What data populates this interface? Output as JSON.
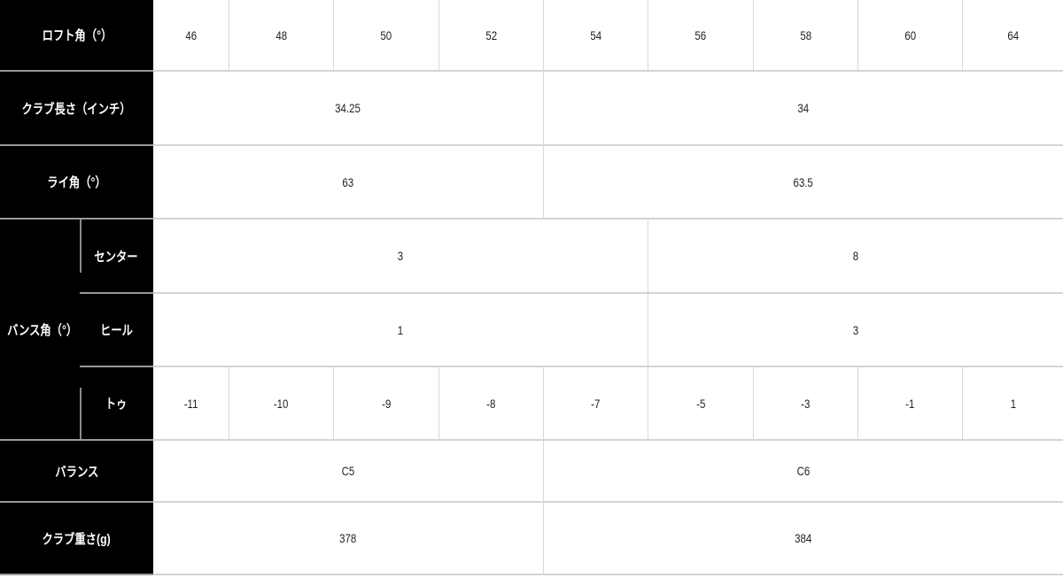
{
  "rows": {
    "loft": {
      "label": "ロフト角（°）",
      "values": [
        "46",
        "48",
        "50",
        "52",
        "54",
        "56",
        "58",
        "60",
        "64"
      ]
    },
    "length": {
      "label": "クラブ長さ（インチ）",
      "values": [
        "34.25",
        "34"
      ]
    },
    "lie": {
      "label": "ライ角（°）",
      "values": [
        "63",
        "63.5"
      ]
    },
    "bounce": {
      "label": "バンス角（°）",
      "center": {
        "label": "センター",
        "values": [
          "3",
          "8"
        ]
      },
      "heel": {
        "label": "ヒール",
        "values": [
          "1",
          "3"
        ]
      },
      "toe": {
        "label": "トゥ",
        "values": [
          "-11",
          "-10",
          "-9",
          "-8",
          "-7",
          "-5",
          "-3",
          "-1",
          "1"
        ]
      }
    },
    "balance": {
      "label": "バランス",
      "values": [
        "C5",
        "C6"
      ]
    },
    "weight": {
      "label": "クラブ重さ(g)",
      "values": [
        "378",
        "384"
      ]
    }
  }
}
